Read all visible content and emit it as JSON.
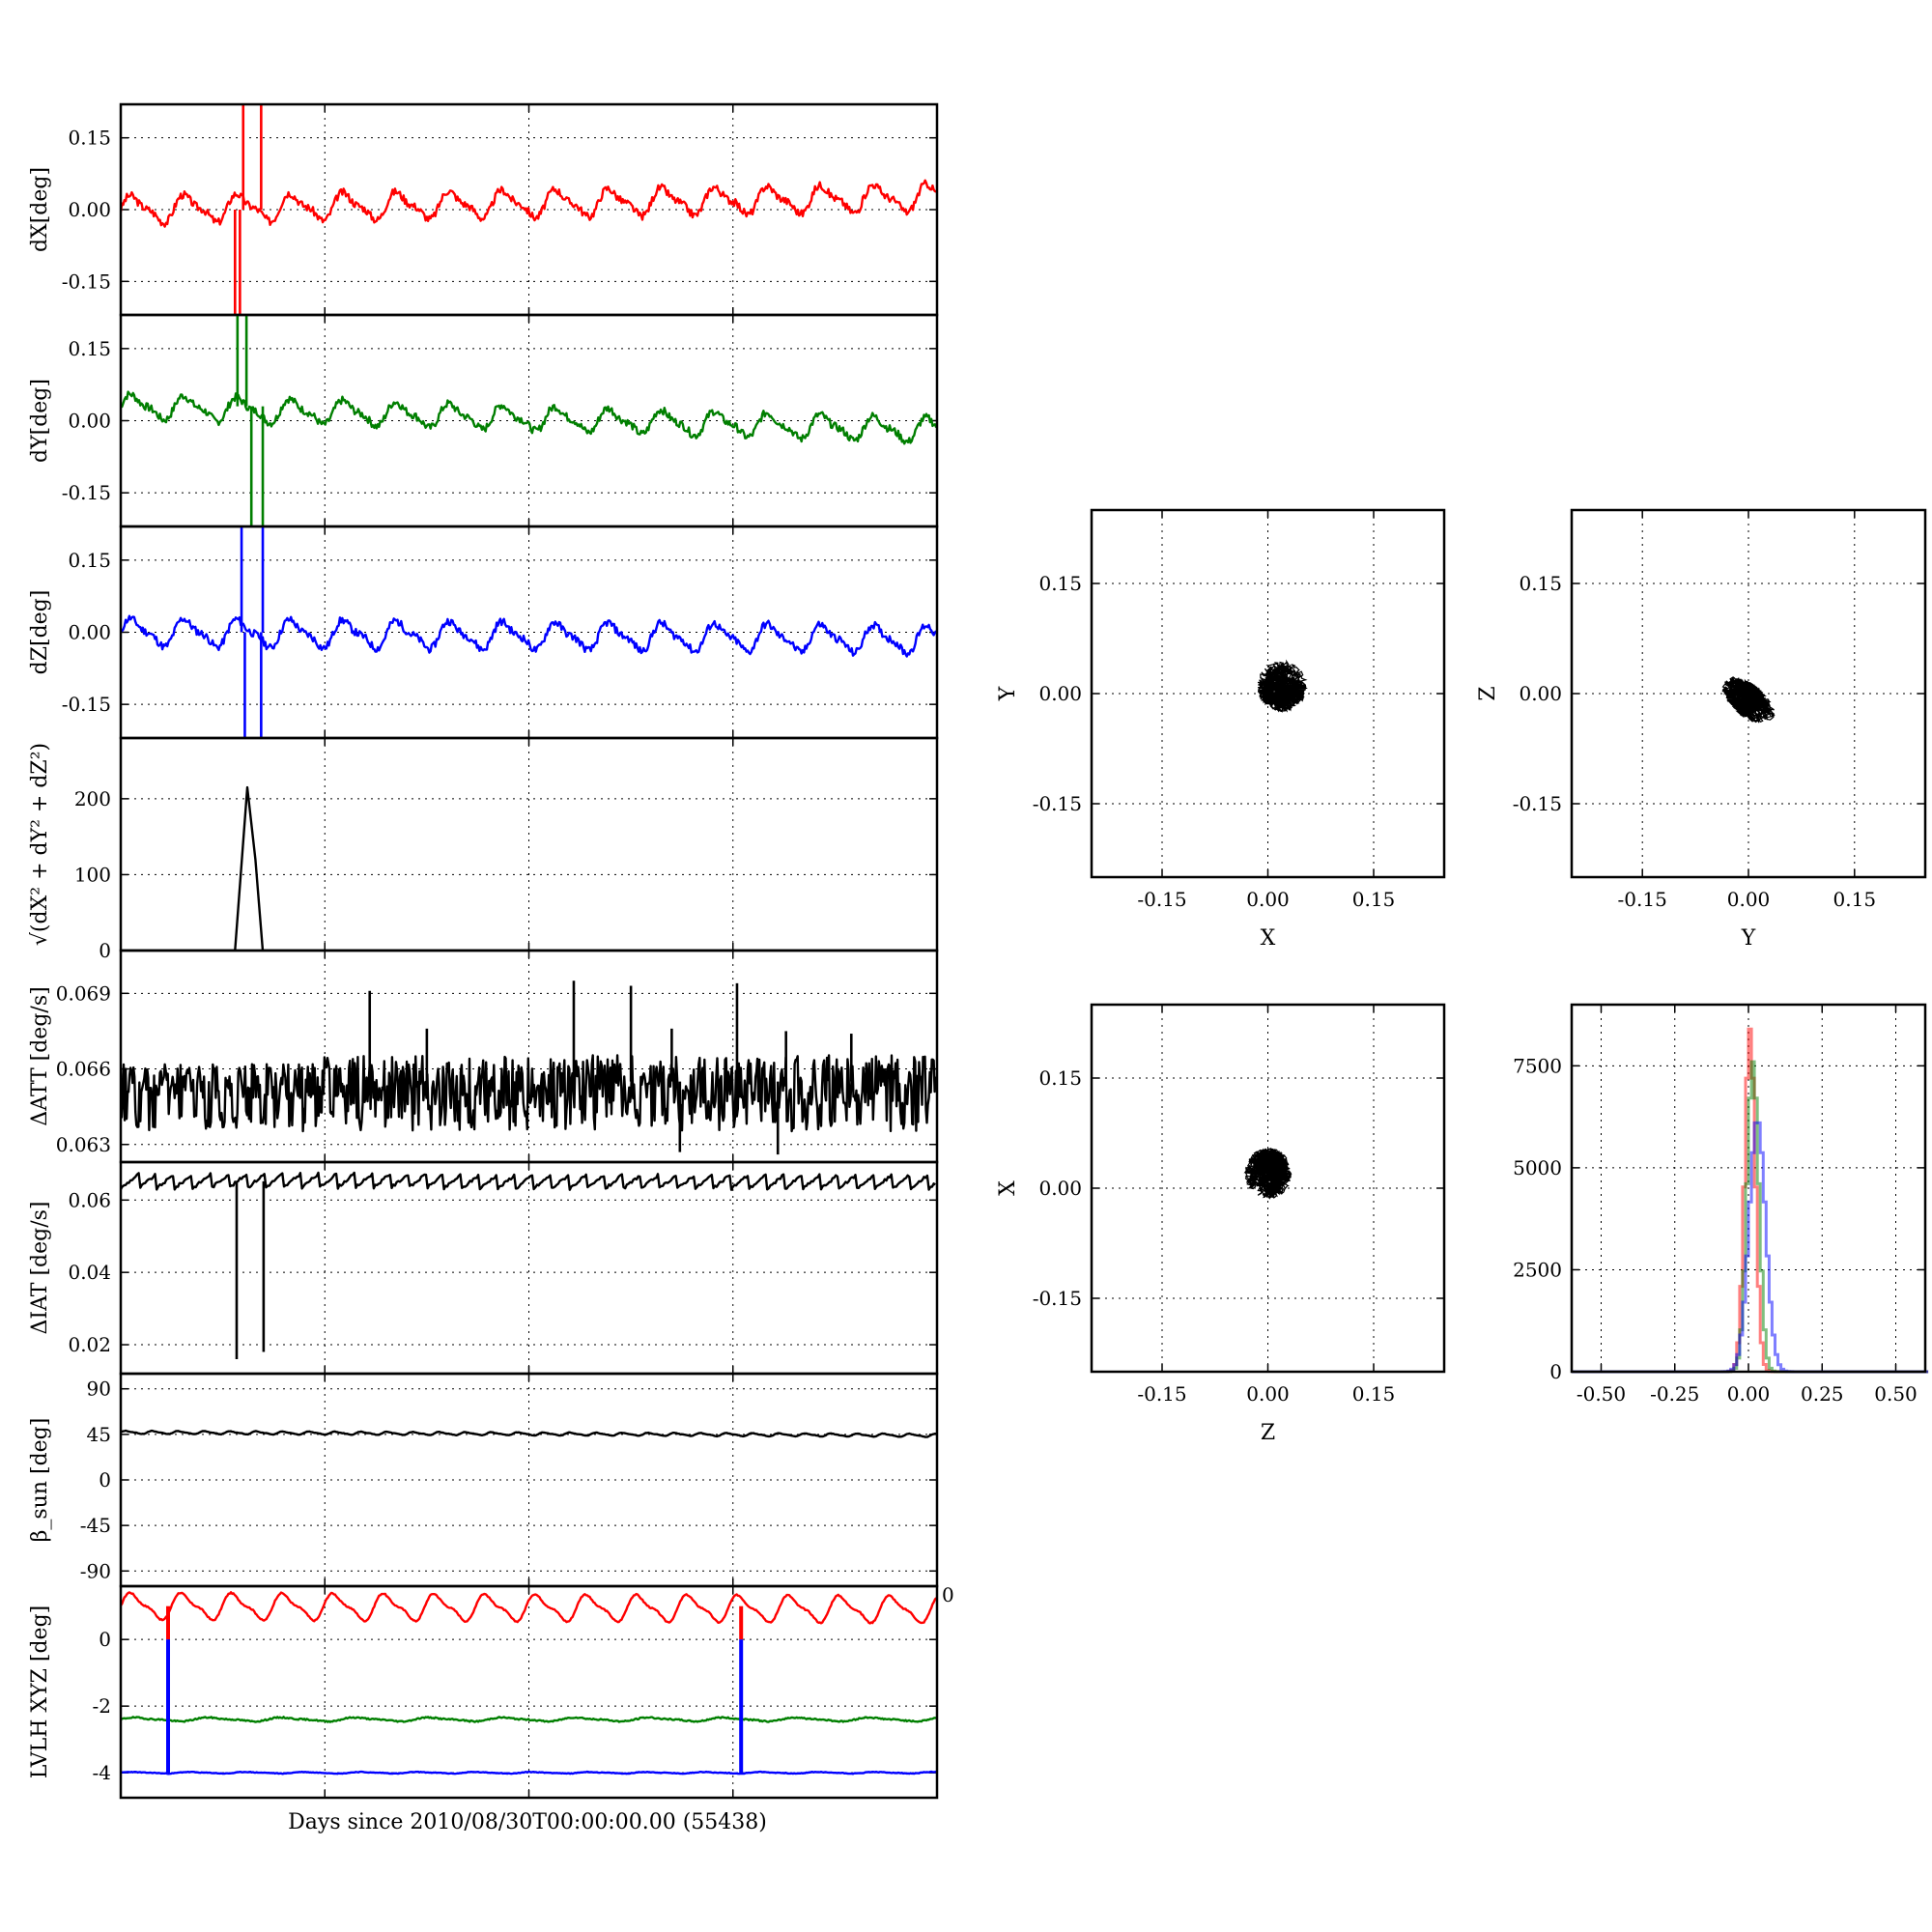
{
  "figure": {
    "xlabel": "Days since 2010/08/30T00:00:00.00 (55438)",
    "edge_tick": "0"
  },
  "colors": {
    "red": "#ff0000",
    "green": "#007f00",
    "blue": "#0000ff",
    "black": "#000000"
  },
  "chart_data": [
    {
      "name": "dx-panel",
      "type": "line",
      "ylabel": "dX[deg]",
      "ylim": [
        -0.22,
        0.22
      ],
      "xlim": [
        0,
        100
      ],
      "yticks": [
        0.15,
        0.0,
        -0.15
      ],
      "ytick_labels": [
        "0.15",
        "0.00",
        "-0.15"
      ],
      "series": [
        {
          "color": "red",
          "base": 0.0,
          "amp": 0.025,
          "trend": 0.025,
          "period": 6.5,
          "noise": 0.008,
          "seed": 3,
          "spikes": [
            [
              14.0,
              -0.25
            ],
            [
              14.6,
              -0.25
            ],
            [
              15.0,
              0.25
            ],
            [
              17.2,
              0.25
            ]
          ]
        }
      ]
    },
    {
      "name": "dy-panel",
      "type": "line",
      "ylabel": "dY[deg]",
      "ylim": [
        -0.22,
        0.22
      ],
      "xlim": [
        0,
        100
      ],
      "yticks": [
        0.15,
        0.0,
        -0.15
      ],
      "ytick_labels": [
        "0.15",
        "0.00",
        "-0.15"
      ],
      "series": [
        {
          "color": "green",
          "base": 0.03,
          "amp": 0.022,
          "trend": -0.05,
          "period": 6.5,
          "noise": 0.008,
          "seed": 7,
          "spikes": [
            [
              14.3,
              0.25
            ],
            [
              15.4,
              0.25
            ],
            [
              16.0,
              -0.25
            ],
            [
              17.4,
              -0.25
            ]
          ]
        }
      ]
    },
    {
      "name": "dz-panel",
      "type": "line",
      "ylabel": "dZ[deg]",
      "ylim": [
        -0.22,
        0.22
      ],
      "xlim": [
        0,
        100
      ],
      "yticks": [
        0.15,
        0.0,
        -0.15
      ],
      "ytick_labels": [
        "0.15",
        "0.00",
        "-0.15"
      ],
      "series": [
        {
          "color": "blue",
          "base": 0.0,
          "amp": 0.025,
          "trend": -0.015,
          "period": 6.5,
          "noise": 0.008,
          "seed": 11,
          "spikes": [
            [
              14.8,
              0.25
            ],
            [
              15.2,
              -0.25
            ],
            [
              17.2,
              -0.25
            ],
            [
              17.4,
              0.25
            ]
          ]
        }
      ]
    },
    {
      "name": "norm-panel",
      "type": "line",
      "ylabel": "√(dX² + dY² + dZ²)",
      "ylim": [
        0,
        280
      ],
      "xlim": [
        0,
        100
      ],
      "yticks": [
        200,
        100,
        0
      ],
      "ytick_labels": [
        "200",
        "100",
        "0"
      ],
      "series": [
        {
          "color": "black",
          "points": [
            [
              0,
              0
            ],
            [
              14.0,
              0
            ],
            [
              15.5,
              215
            ],
            [
              16.5,
              120
            ],
            [
              17.4,
              0
            ],
            [
              100,
              0
            ]
          ]
        }
      ]
    },
    {
      "name": "datt-panel",
      "type": "line",
      "ylabel": "ΔATT [deg/s]",
      "ylim": [
        0.0623,
        0.0707
      ],
      "xlim": [
        0,
        100
      ],
      "yticks": [
        0.069,
        0.066,
        0.063
      ],
      "ytick_labels": [
        "0.069",
        "0.066",
        "0.063"
      ],
      "series": [
        {
          "color": "black",
          "kind": "band",
          "base": 0.0655,
          "band": 0.0007,
          "dip": 0.0018,
          "seed": 5,
          "spikes": [
            [
              30.5,
              0.0691
            ],
            [
              37.5,
              0.0676
            ],
            [
              55.5,
              0.0695
            ],
            [
              62.5,
              0.0693
            ],
            [
              67.5,
              0.0676
            ],
            [
              75.5,
              0.0694
            ],
            [
              81.5,
              0.0675
            ],
            [
              89.5,
              0.0674
            ]
          ],
          "dips": [
            [
              68.5,
              0.0627
            ],
            [
              80.5,
              0.0626
            ]
          ]
        }
      ]
    },
    {
      "name": "diat-panel",
      "type": "line",
      "ylabel": "ΔIAT [deg/s]",
      "ylim": [
        0.012,
        0.0705
      ],
      "xlim": [
        0,
        100
      ],
      "yticks": [
        0.06,
        0.04,
        0.02
      ],
      "ytick_labels": [
        "0.06",
        "0.04",
        "0.02"
      ],
      "series": [
        {
          "color": "black",
          "kind": "sawtooth",
          "base": 0.0652,
          "amp": 0.002,
          "period": 2.2,
          "seed": 9,
          "spikes": [
            [
              14.2,
              0.016
            ],
            [
              17.5,
              0.018
            ]
          ]
        }
      ]
    },
    {
      "name": "beta-panel",
      "type": "line",
      "ylabel": "β_sun [deg]",
      "ylim": [
        -105,
        105
      ],
      "xlim": [
        0,
        100
      ],
      "yticks": [
        90,
        45,
        0,
        -45,
        -90
      ],
      "ytick_labels": [
        "90",
        "45",
        "0",
        "-45",
        "-90"
      ],
      "series": [
        {
          "color": "black",
          "base": 47,
          "amp": 1.3,
          "trend": -3,
          "period": 3.2,
          "noise": 0.2,
          "seed": 13
        }
      ]
    },
    {
      "name": "lvlh-panel",
      "type": "line",
      "ylabel": "LVLH XYZ [deg]",
      "ylim": [
        -4.75,
        1.6
      ],
      "xlim": [
        0,
        100
      ],
      "yticks": [
        0,
        -2,
        -4
      ],
      "ytick_labels": [
        "0",
        "-2",
        "-4"
      ],
      "series": [
        {
          "color": "red",
          "base": 1.0,
          "amp": 0.35,
          "trend": -0.1,
          "period": 6.2,
          "noise": 0.02,
          "seed": 17,
          "spikes": [
            [
              5.8,
              0.0
            ],
            [
              76.0,
              0.0
            ]
          ]
        },
        {
          "color": "green",
          "base": -2.4,
          "amp": 0.05,
          "period": 9.0,
          "noise": 0.02,
          "seed": 19
        },
        {
          "color": "blue",
          "base": -4.0,
          "amp": 0.02,
          "period": 7.0,
          "noise": 0.01,
          "seed": 23,
          "spikes": [
            [
              5.8,
              0.0
            ],
            [
              76.0,
              0.0
            ]
          ]
        }
      ]
    },
    {
      "name": "xy-scatter",
      "type": "scatter",
      "xlabel": "X",
      "ylabel": "Y",
      "xlim": [
        -0.25,
        0.25
      ],
      "ylim": [
        -0.25,
        0.25
      ],
      "xticks": [
        -0.15,
        0.0,
        0.15
      ],
      "yticks": [
        0.15,
        0.0,
        -0.15
      ],
      "xtick_labels": [
        "-0.15",
        "0.00",
        "0.15"
      ],
      "ytick_labels": [
        "0.15",
        "0.00",
        "-0.15"
      ],
      "cloud": {
        "cx": 0.02,
        "cy": 0.01,
        "rx": 0.035,
        "ry": 0.035,
        "rot": 0,
        "seed": 31
      }
    },
    {
      "name": "yz-scatter",
      "type": "scatter",
      "xlabel": "Y",
      "ylabel": "Z",
      "xlim": [
        -0.25,
        0.25
      ],
      "ylim": [
        -0.25,
        0.25
      ],
      "xticks": [
        -0.15,
        0.0,
        0.15
      ],
      "yticks": [
        0.15,
        0.0,
        -0.15
      ],
      "xtick_labels": [
        "-0.15",
        "0.00",
        "0.15"
      ],
      "ytick_labels": [
        "0.15",
        "0.00",
        "-0.15"
      ],
      "cloud": {
        "cx": 0.0,
        "cy": -0.01,
        "rx": 0.045,
        "ry": 0.022,
        "rot": -38,
        "seed": 37
      }
    },
    {
      "name": "zx-scatter",
      "type": "scatter",
      "xlabel": "Z",
      "ylabel": "X",
      "xlim": [
        -0.25,
        0.25
      ],
      "ylim": [
        -0.25,
        0.25
      ],
      "xticks": [
        -0.15,
        0.0,
        0.15
      ],
      "yticks": [
        0.15,
        0.0,
        -0.15
      ],
      "xtick_labels": [
        "-0.15",
        "0.00",
        "0.15"
      ],
      "ytick_labels": [
        "0.15",
        "0.00",
        "-0.15"
      ],
      "cloud": {
        "cx": 0.0,
        "cy": 0.02,
        "rx": 0.033,
        "ry": 0.035,
        "rot": 0,
        "seed": 41
      }
    },
    {
      "name": "histogram",
      "type": "bar",
      "xlim": [
        -0.6,
        0.6
      ],
      "ylim": [
        0,
        9000
      ],
      "xticks": [
        -0.5,
        -0.25,
        0.0,
        0.25,
        0.5
      ],
      "yticks": [
        7500,
        5000,
        2500,
        0
      ],
      "xtick_labels": [
        "-0.50",
        "-0.25",
        "0.00",
        "0.25",
        "0.50"
      ],
      "ytick_labels": [
        "7500",
        "5000",
        "2500",
        "0"
      ],
      "bin_width": 0.01,
      "series": [
        {
          "color": "red",
          "center": 0.0,
          "sigma": 0.018,
          "peak": 8400
        },
        {
          "color": "green",
          "center": 0.01,
          "sigma": 0.02,
          "peak": 7600
        },
        {
          "color": "blue",
          "center": 0.025,
          "sigma": 0.028,
          "peak": 6200
        }
      ]
    }
  ]
}
